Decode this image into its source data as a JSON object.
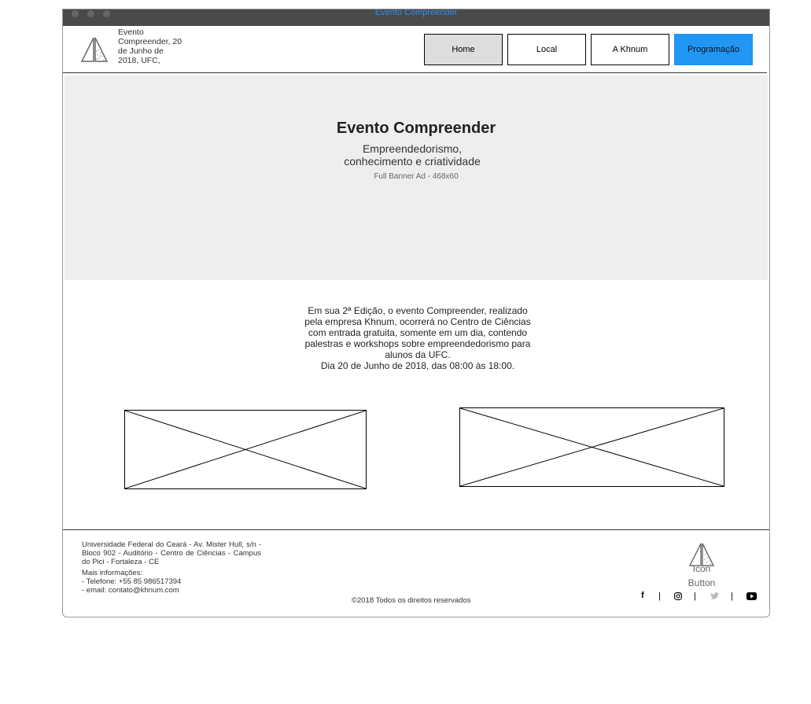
{
  "window": {
    "title": "Evento Compreender"
  },
  "header": {
    "info_lines": [
      "Evento",
      "Compreender, 20",
      "de Junho de",
      "2018, UFC,"
    ],
    "nav": {
      "home": "Home",
      "local": "Local",
      "khnum": "A Khnum",
      "programacao": "Programação"
    }
  },
  "hero": {
    "title": "Evento Compreender",
    "subtitle_lines": [
      "Empreendedorismo,",
      "conhecimento e criatividade"
    ],
    "ad_label": "Full Banner Ad - 468x60"
  },
  "description": {
    "lines": [
      "Em sua 2ª Edição, o evento Compreender, realizado",
      "pela empresa Khnum, ocorrerá no Centro de Ciências",
      "com entrada gratuita, somente em um dia, contendo",
      "palestras e workshops sobre empreendedorismo para",
      "alunos da UFC.",
      "Dia 20 de Junho de 2018, das 08:00 às 18:00."
    ]
  },
  "footer": {
    "address": "Universidade Federal do Ceará - Av. Mister Hull, s/n - Bloco 902 - Auditório - Centro de Ciências - Campus do Pici - Fortaleza - CE",
    "more_lines": [
      "Mais informações:",
      "- Telefone: +55 85 986517394",
      "- email: contato@khnum.com"
    ],
    "copyright": "©2018 Todos os direitos reservados",
    "icon_button_lines": [
      "Icon",
      "Button"
    ],
    "social": {
      "facebook": "f",
      "separator": "|",
      "twitter_color": "#bbbbbb"
    }
  }
}
